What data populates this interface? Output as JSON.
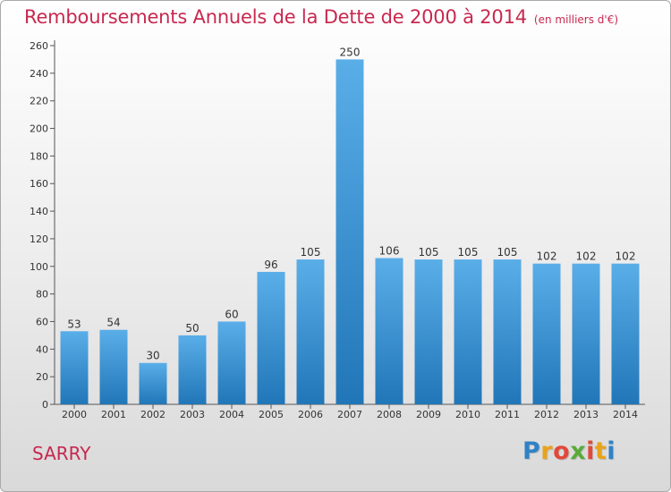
{
  "header": {
    "title": "Remboursements Annuels de la Dette de 2000 à 2014",
    "unit": "(en milliers d'€)"
  },
  "footer": {
    "commune": "SARRY",
    "logo": "Proxiti"
  },
  "colors": {
    "title": "#c8284f",
    "bar_top": "#5aaee8",
    "bar_bottom": "#2176b8"
  },
  "chart_data": {
    "type": "bar",
    "title": "Remboursements Annuels de la Dette de 2000 à 2014",
    "subtitle": "(en milliers d'€)",
    "xlabel": "",
    "ylabel": "",
    "categories": [
      "2000",
      "2001",
      "2002",
      "2003",
      "2004",
      "2005",
      "2006",
      "2007",
      "2008",
      "2009",
      "2010",
      "2011",
      "2012",
      "2013",
      "2014"
    ],
    "values": [
      53,
      54,
      30,
      50,
      60,
      96,
      105,
      250,
      106,
      105,
      105,
      105,
      102,
      102,
      102
    ],
    "ylim": [
      0,
      260
    ],
    "yticks": [
      0,
      20,
      40,
      60,
      80,
      100,
      120,
      140,
      160,
      180,
      200,
      220,
      240,
      260
    ],
    "grid": false,
    "data_labels": true
  }
}
